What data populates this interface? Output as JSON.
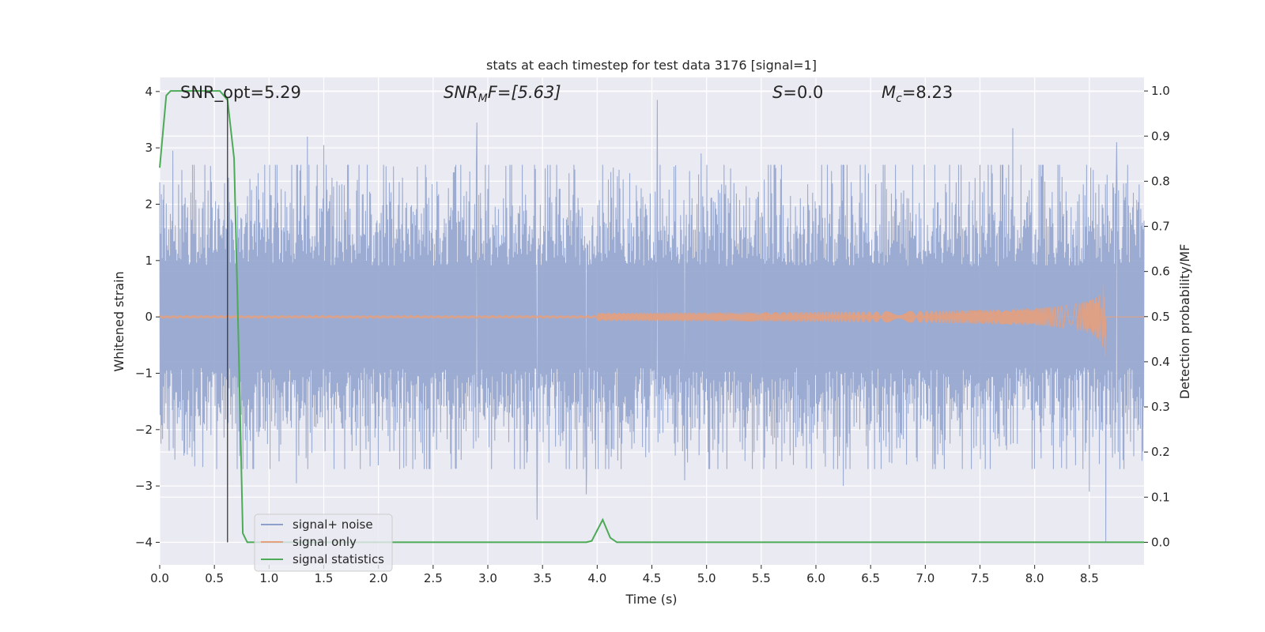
{
  "chart_data": {
    "type": "line",
    "title": "stats at each timestep for test data 3176 [signal=1]",
    "xlabel": "Time (s)",
    "ylabel": "Whitened strain",
    "y2label": "Detection probability/MF",
    "xlim": [
      0,
      9.0
    ],
    "ylim": [
      -4.4,
      4.25
    ],
    "y2lim": [
      -0.05,
      1.03
    ],
    "x_ticks": [
      0.0,
      0.5,
      1.0,
      1.5,
      2.0,
      2.5,
      3.0,
      3.5,
      4.0,
      4.5,
      5.0,
      5.5,
      6.0,
      6.5,
      7.0,
      7.5,
      8.0,
      8.5
    ],
    "x_tick_labels": [
      "0.0",
      "0.5",
      "1.0",
      "1.5",
      "2.0",
      "2.5",
      "3.0",
      "3.5",
      "4.0",
      "4.5",
      "5.0",
      "5.5",
      "6.0",
      "6.5",
      "7.0",
      "7.5",
      "8.0",
      "8.5"
    ],
    "y_ticks": [
      -4,
      -3,
      -2,
      -1,
      0,
      1,
      2,
      3,
      4
    ],
    "y_tick_labels": [
      "−4",
      "−3",
      "−2",
      "−1",
      "0",
      "1",
      "2",
      "3",
      "4"
    ],
    "y2_ticks": [
      0.0,
      0.1,
      0.2,
      0.3,
      0.4,
      0.5,
      0.6,
      0.7,
      0.8,
      0.9,
      1.0
    ],
    "y2_tick_labels": [
      "0.0",
      "0.1",
      "0.2",
      "0.3",
      "0.4",
      "0.5",
      "0.6",
      "0.7",
      "0.8",
      "0.9",
      "1.0"
    ],
    "grid": true,
    "legend_position": "lower-left",
    "annotations": {
      "snr_opt": "SNR_opt=5.29",
      "snr_mf": "SNRMF=[5.63]",
      "snr_mf_main": "SNR",
      "snr_mf_sub": "M",
      "snr_mf_rest": "F=[5.63]",
      "s_main": "S",
      "s_rest": "=0.0",
      "mc_main": "M",
      "mc_sub": "c",
      "mc_rest": "=8.23"
    },
    "marker_line_x": 0.62,
    "series": [
      {
        "name": "signal+ noise",
        "color": "#8da0cb",
        "noise_envelope": {
          "x_range": [
            0,
            9.0
          ],
          "typical_amplitude": 1.5,
          "peaks_up": [
            [
              0.12,
              2.95
            ],
            [
              0.9,
              2.55
            ],
            [
              1.35,
              3.2
            ],
            [
              1.5,
              3.05
            ],
            [
              2.9,
              3.45
            ],
            [
              4.55,
              3.85
            ],
            [
              4.95,
              2.9
            ],
            [
              7.8,
              3.35
            ],
            [
              8.75,
              3.1
            ]
          ],
          "peaks_down": [
            [
              0.32,
              -2.65
            ],
            [
              1.25,
              -2.95
            ],
            [
              3.45,
              -3.6
            ],
            [
              3.9,
              -3.15
            ],
            [
              4.8,
              -2.9
            ],
            [
              6.25,
              -3.0
            ],
            [
              8.5,
              -3.1
            ],
            [
              8.65,
              -4.0
            ]
          ]
        }
      },
      {
        "name": "signal only",
        "color": "#e5a07d",
        "chirp": {
          "start": 4.0,
          "merger": 8.65,
          "peak_amplitude": 0.8
        }
      },
      {
        "name": "signal statistics",
        "color": "#4daa57",
        "axis": "right",
        "x": [
          0.0,
          0.06,
          0.1,
          0.2,
          0.4,
          0.55,
          0.62,
          0.68,
          0.72,
          0.76,
          0.8,
          1.0,
          3.9,
          3.95,
          4.05,
          4.12,
          4.18,
          4.5,
          9.0
        ],
        "y": [
          0.83,
          0.99,
          1.0,
          1.0,
          1.0,
          1.0,
          0.98,
          0.85,
          0.45,
          0.02,
          0.0,
          0.0,
          0.0,
          0.003,
          0.05,
          0.01,
          0.0,
          0.0,
          0.0
        ]
      }
    ]
  }
}
